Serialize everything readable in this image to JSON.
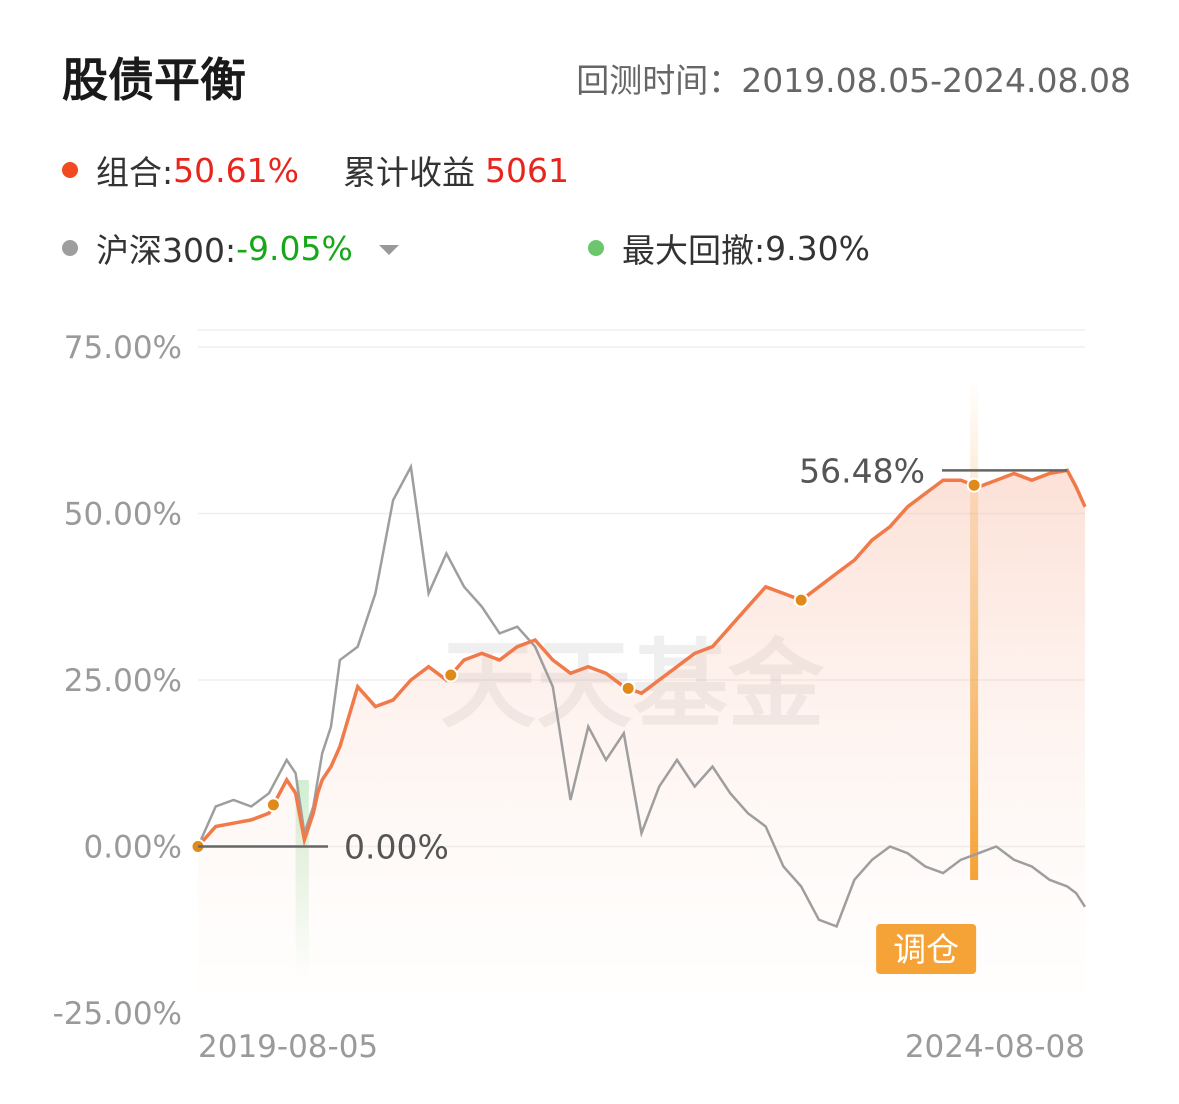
{
  "header": {
    "title": "股债平衡",
    "period_label": "回测时间：",
    "period_value": "2019.08.05-2024.08.08"
  },
  "legend": {
    "portfolio_label": "组合:",
    "portfolio_value": "50.61%",
    "cumulative_label": "累计收益",
    "cumulative_value": "5061",
    "benchmark_label": "沪深300:",
    "benchmark_value": "-9.05%",
    "drawdown_label": "最大回撤:",
    "drawdown_value": "9.30%"
  },
  "colors": {
    "portfolio": "#f07a4a",
    "benchmark": "#9e9e9e",
    "drawdown": "#6cc76c",
    "red_text": "#e8251c",
    "green_text": "#17a81a",
    "rebalance": "#f5a236",
    "marker": "#e08a1a"
  },
  "watermark": "天天基金",
  "chart_data": {
    "type": "line",
    "y_ticks": [
      "75.00%",
      "50.00%",
      "25.00%",
      "0.00%",
      "-25.00%"
    ],
    "ylim": [
      -25,
      75
    ],
    "x_labels": [
      "2019-08-05",
      "2024-08-08"
    ],
    "annotations": {
      "start_value": "0.00%",
      "max_value": "56.48%",
      "rebalance_label": "调仓"
    },
    "series": [
      {
        "name": "组合",
        "x": [
          0,
          0.02,
          0.04,
          0.06,
          0.08,
          0.1,
          0.11,
          0.12,
          0.13,
          0.135,
          0.14,
          0.15,
          0.16,
          0.18,
          0.2,
          0.22,
          0.24,
          0.26,
          0.28,
          0.3,
          0.32,
          0.34,
          0.36,
          0.38,
          0.4,
          0.42,
          0.44,
          0.46,
          0.48,
          0.5,
          0.52,
          0.54,
          0.56,
          0.58,
          0.6,
          0.62,
          0.64,
          0.66,
          0.68,
          0.7,
          0.72,
          0.74,
          0.76,
          0.78,
          0.8,
          0.82,
          0.84,
          0.86,
          0.88,
          0.9,
          0.92,
          0.94,
          0.96,
          0.98,
          0.99,
          1.0
        ],
        "values": [
          0,
          3,
          3.5,
          4,
          5,
          10,
          8,
          1,
          5,
          8,
          10,
          12,
          15,
          24,
          21,
          22,
          25,
          27,
          25,
          28,
          29,
          28,
          30,
          31,
          28,
          26,
          27,
          26,
          24,
          23,
          25,
          27,
          29,
          30,
          33,
          36,
          39,
          38,
          37,
          39,
          41,
          43,
          46,
          48,
          51,
          53,
          55,
          55,
          54,
          55,
          56,
          55,
          56,
          56.48,
          54,
          51
        ]
      },
      {
        "name": "沪深300",
        "x": [
          0,
          0.02,
          0.04,
          0.06,
          0.08,
          0.1,
          0.11,
          0.12,
          0.13,
          0.135,
          0.14,
          0.15,
          0.16,
          0.18,
          0.2,
          0.22,
          0.24,
          0.26,
          0.28,
          0.3,
          0.32,
          0.34,
          0.36,
          0.38,
          0.4,
          0.42,
          0.44,
          0.46,
          0.48,
          0.5,
          0.52,
          0.54,
          0.56,
          0.58,
          0.6,
          0.62,
          0.64,
          0.66,
          0.68,
          0.7,
          0.72,
          0.74,
          0.76,
          0.78,
          0.8,
          0.82,
          0.84,
          0.86,
          0.88,
          0.9,
          0.92,
          0.94,
          0.96,
          0.98,
          0.99,
          1.0
        ],
        "values": [
          0,
          6,
          7,
          6,
          8,
          13,
          11,
          2,
          6,
          10,
          14,
          18,
          28,
          30,
          38,
          52,
          57,
          38,
          44,
          39,
          36,
          32,
          33,
          30,
          24,
          7,
          18,
          13,
          17,
          2,
          9,
          13,
          9,
          12,
          8,
          5,
          3,
          -3,
          -6,
          -11,
          -12,
          -5,
          -2,
          0,
          -1,
          -3,
          -4,
          -2,
          -1,
          0,
          -2,
          -3,
          -5,
          -6,
          -7,
          -9.05
        ]
      }
    ],
    "markers_x": [
      0,
      0.085,
      0.285,
      0.485,
      0.68,
      0.875
    ],
    "rebalance_x": 0.875,
    "drawdown_band_x": [
      0.11,
      0.125
    ],
    "grid": true
  }
}
